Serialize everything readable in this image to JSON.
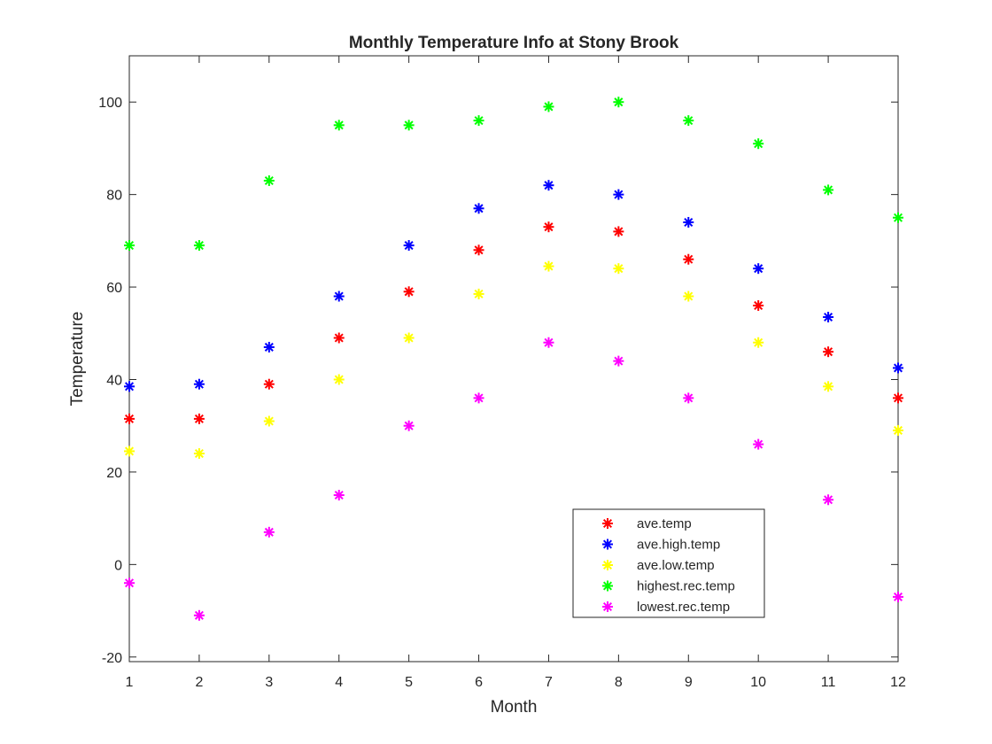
{
  "chart_data": {
    "type": "scatter",
    "title": "Monthly Temperature Info at Stony Brook",
    "xlabel": "Month",
    "ylabel": "Temperature",
    "xlim": [
      1,
      12
    ],
    "ylim": [
      -21,
      110
    ],
    "x": [
      1,
      2,
      3,
      4,
      5,
      6,
      7,
      8,
      9,
      10,
      11,
      12
    ],
    "x_ticks": [
      1,
      2,
      3,
      4,
      5,
      6,
      7,
      8,
      9,
      10,
      11,
      12
    ],
    "y_ticks": [
      -20,
      0,
      20,
      40,
      60,
      80,
      100
    ],
    "grid": false,
    "marker": "*",
    "legend_position": "bottom-right-inside",
    "series": [
      {
        "name": "ave.temp",
        "color": "#ff0000",
        "values": [
          31.5,
          31.5,
          39,
          49,
          59,
          68,
          73,
          72,
          66,
          56,
          46,
          36
        ]
      },
      {
        "name": "ave.high.temp",
        "color": "#0000ff",
        "values": [
          38.5,
          39,
          47,
          58,
          69,
          77,
          82,
          80,
          74,
          64,
          53.5,
          42.5
        ]
      },
      {
        "name": "ave.low.temp",
        "color": "#ffff00",
        "values": [
          24.5,
          24,
          31,
          40,
          49,
          58.5,
          64.5,
          64,
          58,
          48,
          38.5,
          29
        ]
      },
      {
        "name": "highest.rec.temp",
        "color": "#00ff00",
        "values": [
          69,
          69,
          83,
          95,
          95,
          96,
          99,
          100,
          96,
          91,
          81,
          75
        ]
      },
      {
        "name": "lowest.rec.temp",
        "color": "#ff00ff",
        "values": [
          -4,
          -11,
          7,
          15,
          30,
          36,
          48,
          44,
          36,
          26,
          14,
          -7
        ]
      }
    ]
  }
}
